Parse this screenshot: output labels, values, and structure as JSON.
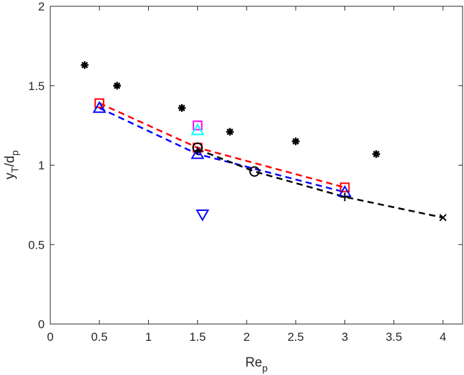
{
  "chart_data": {
    "type": "scatter",
    "title": "",
    "xlabel": {
      "main": "Re",
      "sub": "p"
    },
    "ylabel": {
      "main": "y",
      "sub1": "T",
      "sep": "/d",
      "sub2": "p"
    },
    "xlim": [
      0,
      4.2
    ],
    "ylim": [
      0,
      2
    ],
    "xticks": [
      0,
      0.5,
      1,
      1.5,
      2,
      2.5,
      3,
      3.5,
      4
    ],
    "xtick_labels": [
      "0",
      "0.5",
      "1",
      "1.5",
      "2",
      "2.5",
      "3",
      "3.5",
      "4"
    ],
    "yticks": [
      0,
      0.5,
      1,
      1.5,
      2
    ],
    "ytick_labels": [
      "0",
      "0.5",
      "1",
      "1.5",
      "2"
    ],
    "grid": false,
    "legend": "none",
    "series": [
      {
        "marker": "asterisk",
        "color": "#000000",
        "line": "none",
        "x": [
          0.35,
          0.68,
          1.34,
          1.83,
          2.5,
          3.32
        ],
        "y": [
          1.63,
          1.5,
          1.36,
          1.21,
          1.15,
          1.07
        ]
      },
      {
        "marker": "square",
        "color": "#ff0000",
        "line": "dashed",
        "x": [
          0.5,
          1.5,
          3.0
        ],
        "y": [
          1.39,
          1.11,
          0.86
        ]
      },
      {
        "marker": "triangle-up",
        "color": "#0000ff",
        "line": "dashed",
        "x": [
          0.5,
          1.5,
          3.0
        ],
        "y": [
          1.36,
          1.07,
          0.83
        ]
      },
      {
        "marker": "circle",
        "color": "#000000",
        "line": "dashed",
        "x": [
          1.5,
          2.08
        ],
        "y": [
          1.11,
          0.96
        ]
      },
      {
        "marker": "plus",
        "color": "#000000",
        "line": "dashed",
        "x": [
          1.5,
          3.0
        ],
        "y": [
          1.09,
          0.8
        ]
      },
      {
        "marker": "x",
        "color": "#000000",
        "line": "dashed",
        "x": [
          4.0
        ],
        "y": [
          0.67
        ]
      },
      {
        "marker": "triangle-down",
        "color": "#0000ff",
        "line": "none",
        "x": [
          1.55
        ],
        "y": [
          0.69
        ]
      },
      {
        "marker": "square",
        "color": "#ff00ff",
        "line": "none",
        "x": [
          1.5
        ],
        "y": [
          1.25
        ]
      },
      {
        "marker": "triangle-up",
        "color": "#00ffff",
        "line": "none",
        "x": [
          1.5
        ],
        "y": [
          1.22
        ]
      }
    ],
    "dashed_lines": [
      {
        "color": "#ff0000",
        "x": [
          0.5,
          1.5,
          3.0
        ],
        "y": [
          1.39,
          1.11,
          0.86
        ]
      },
      {
        "color": "#0000ff",
        "x": [
          0.5,
          1.5,
          3.0
        ],
        "y": [
          1.36,
          1.07,
          0.83
        ]
      },
      {
        "color": "#000000",
        "x": [
          1.5,
          2.08,
          3.0,
          4.0
        ],
        "y": [
          1.1,
          0.96,
          0.8,
          0.67
        ]
      }
    ]
  }
}
